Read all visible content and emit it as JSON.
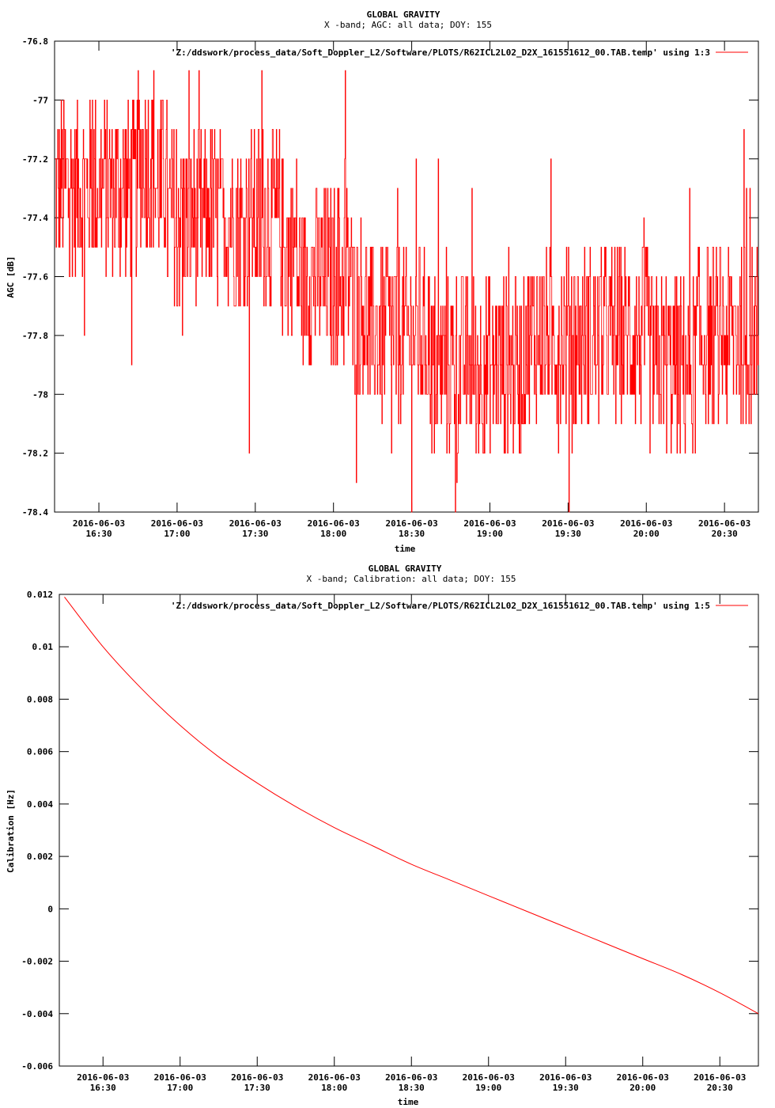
{
  "charts": [
    {
      "title_line1": "GLOBAL GRAVITY",
      "title_line2": "X -band; AGC: all data; DOY: 155",
      "ylabel": "AGC [dB]",
      "xlabel": "time",
      "legend": "'Z:/ddswork/process_data/Soft_Doppler_L2/Software/PLOTS/R62ICL2L02_D2X_161551612_00.TAB.temp' using 1:3",
      "ytick_labels": [
        "-76.8",
        "-77",
        "-77.2",
        "-77.4",
        "-77.6",
        "-77.8",
        "-78",
        "-78.2",
        "-78.4"
      ],
      "xtick_dates": [
        "2016-06-03",
        "2016-06-03",
        "2016-06-03",
        "2016-06-03",
        "2016-06-03",
        "2016-06-03",
        "2016-06-03",
        "2016-06-03",
        "2016-06-03"
      ],
      "xtick_times": [
        "16:30",
        "17:00",
        "17:30",
        "18:00",
        "18:30",
        "19:00",
        "19:30",
        "20:00",
        "20:30"
      ]
    },
    {
      "title_line1": "GLOBAL GRAVITY",
      "title_line2": "X -band; Calibration: all data; DOY: 155",
      "ylabel": "Calibration [Hz]",
      "xlabel": "time",
      "legend": "'Z:/ddswork/process_data/Soft_Doppler_L2/Software/PLOTS/R62ICL2L02_D2X_161551612_00.TAB.temp' using 1:5",
      "ytick_labels": [
        "0.012",
        "0.01",
        "0.008",
        "0.006",
        "0.004",
        "0.002",
        "0",
        "-0.002",
        "-0.004",
        "-0.006"
      ],
      "xtick_dates": [
        "2016-06-03",
        "2016-06-03",
        "2016-06-03",
        "2016-06-03",
        "2016-06-03",
        "2016-06-03",
        "2016-06-03",
        "2016-06-03",
        "2016-06-03"
      ],
      "xtick_times": [
        "16:30",
        "17:00",
        "17:30",
        "18:00",
        "18:30",
        "19:00",
        "19:30",
        "20:00",
        "20:30"
      ]
    }
  ],
  "chart_data": [
    {
      "type": "line",
      "series": [
        {
          "color": "#ff0000",
          "x": [
            "16:13",
            "16:25",
            "16:37",
            "16:49",
            "17:01",
            "17:13",
            "17:25",
            "17:37",
            "17:49",
            "18:01",
            "18:13",
            "18:25",
            "18:37",
            "18:49",
            "19:01",
            "19:13",
            "19:25",
            "19:37",
            "19:49",
            "20:01",
            "20:13",
            "20:25",
            "20:37",
            "20:43"
          ],
          "y": [
            -77.3,
            -77.3,
            -77.35,
            -77.2,
            -77.45,
            -77.4,
            -77.45,
            -77.4,
            -77.6,
            -77.55,
            -77.75,
            -77.85,
            -77.85,
            -77.9,
            -77.9,
            -77.85,
            -77.85,
            -77.85,
            -77.8,
            -77.85,
            -77.9,
            -77.8,
            -77.8,
            -77.85
          ],
          "y_min": -78.4,
          "y_max": -76.9
        }
      ],
      "xlim": [
        "16:13",
        "20:43"
      ],
      "ylim": [
        -78.4,
        -76.8
      ],
      "x_ticks": [
        "16:30",
        "17:00",
        "17:30",
        "18:00",
        "18:30",
        "19:00",
        "19:30",
        "20:00",
        "20:30"
      ],
      "y_ticks": [
        -76.8,
        -77,
        -77.2,
        -77.4,
        -77.6,
        -77.8,
        -78,
        -78.2,
        -78.4
      ],
      "grid": false,
      "legend_position": "top-right"
    },
    {
      "type": "line",
      "series": [
        {
          "color": "#ff0000",
          "x": [
            "16:15",
            "16:30",
            "16:45",
            "17:00",
            "17:15",
            "17:30",
            "17:45",
            "18:00",
            "18:15",
            "18:30",
            "18:45",
            "19:00",
            "19:15",
            "19:30",
            "19:45",
            "20:00",
            "20:15",
            "20:30",
            "20:45"
          ],
          "y": [
            0.0119,
            0.01,
            0.0084,
            0.007,
            0.0058,
            0.0048,
            0.0039,
            0.0031,
            0.0024,
            0.0017,
            0.0011,
            0.0005,
            -0.0001,
            -0.0007,
            -0.0013,
            -0.0019,
            -0.0025,
            -0.0032,
            -0.004
          ]
        }
      ],
      "xlim": [
        "16:13",
        "20:45"
      ],
      "ylim": [
        -0.006,
        0.012
      ],
      "x_ticks": [
        "16:30",
        "17:00",
        "17:30",
        "18:00",
        "18:30",
        "19:00",
        "19:30",
        "20:00",
        "20:30"
      ],
      "y_ticks": [
        0.012,
        0.01,
        0.008,
        0.006,
        0.004,
        0.002,
        0,
        -0.002,
        -0.004,
        -0.006
      ],
      "grid": false,
      "legend_position": "top-right"
    }
  ]
}
